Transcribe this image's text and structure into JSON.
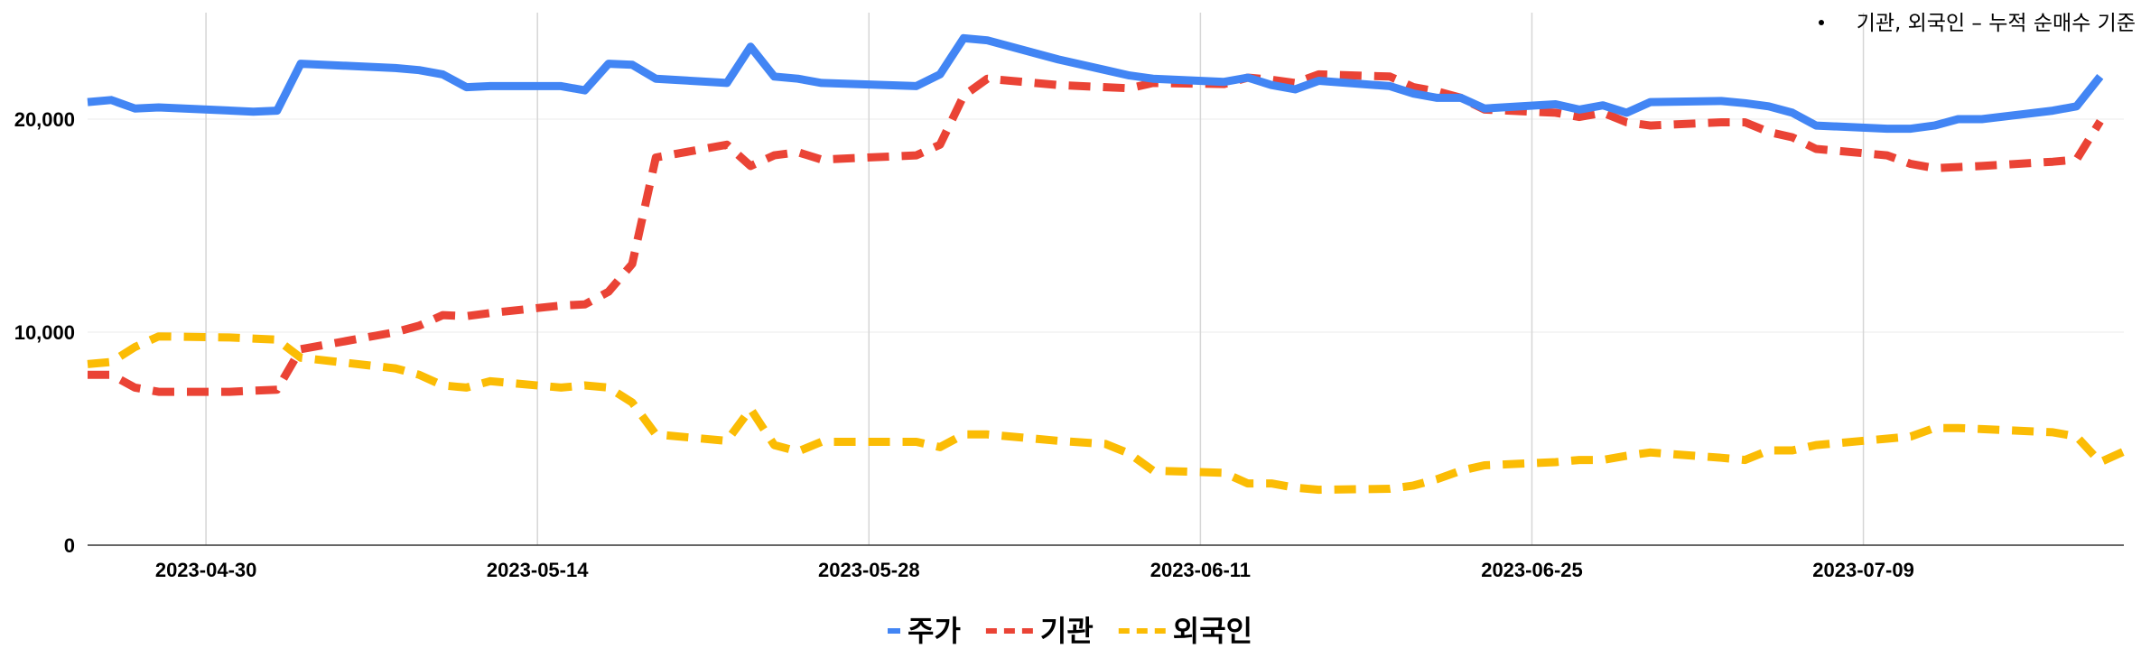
{
  "note": {
    "text": "기관, 외국인 – 누적 순매수 기준"
  },
  "chart_data": {
    "type": "line",
    "x_tick_labels": [
      "2023-04-30",
      "2023-05-14",
      "2023-05-28",
      "2023-06-11",
      "2023-06-25",
      "2023-07-09"
    ],
    "y_tick_labels": [
      "0",
      "10,000",
      "20,000"
    ],
    "y_ticks": [
      0,
      10000,
      20000
    ],
    "ylim": [
      0,
      25000
    ],
    "xlim": [
      "2023-04-25",
      "2023-07-20"
    ],
    "grid": "vertical and horizontal",
    "legend_position": "bottom",
    "series": [
      {
        "name": "주가",
        "color": "#4285f4",
        "dash": "solid",
        "points": [
          [
            "2023-04-25",
            20800
          ],
          [
            "2023-04-26",
            20900
          ],
          [
            "2023-04-27",
            20500
          ],
          [
            "2023-04-28",
            20550
          ],
          [
            "2023-05-02",
            20350
          ],
          [
            "2023-05-03",
            20400
          ],
          [
            "2023-05-04",
            22600
          ],
          [
            "2023-05-08",
            22400
          ],
          [
            "2023-05-09",
            22300
          ],
          [
            "2023-05-10",
            22100
          ],
          [
            "2023-05-11",
            21500
          ],
          [
            "2023-05-12",
            21550
          ],
          [
            "2023-05-15",
            21550
          ],
          [
            "2023-05-16",
            21350
          ],
          [
            "2023-05-17",
            22600
          ],
          [
            "2023-05-18",
            22550
          ],
          [
            "2023-05-19",
            21900
          ],
          [
            "2023-05-22",
            21700
          ],
          [
            "2023-05-23",
            23400
          ],
          [
            "2023-05-24",
            22000
          ],
          [
            "2023-05-25",
            21900
          ],
          [
            "2023-05-26",
            21700
          ],
          [
            "2023-05-30",
            21550
          ],
          [
            "2023-05-31",
            22100
          ],
          [
            "2023-06-01",
            23800
          ],
          [
            "2023-06-02",
            23700
          ],
          [
            "2023-06-05",
            22800
          ],
          [
            "2023-06-07",
            22300
          ],
          [
            "2023-06-08",
            22050
          ],
          [
            "2023-06-09",
            21900
          ],
          [
            "2023-06-12",
            21750
          ],
          [
            "2023-06-13",
            21950
          ],
          [
            "2023-06-14",
            21600
          ],
          [
            "2023-06-15",
            21400
          ],
          [
            "2023-06-16",
            21800
          ],
          [
            "2023-06-19",
            21550
          ],
          [
            "2023-06-20",
            21200
          ],
          [
            "2023-06-21",
            21000
          ],
          [
            "2023-06-22",
            21000
          ],
          [
            "2023-06-23",
            20500
          ],
          [
            "2023-06-26",
            20700
          ],
          [
            "2023-06-27",
            20450
          ],
          [
            "2023-06-28",
            20650
          ],
          [
            "2023-06-29",
            20300
          ],
          [
            "2023-06-30",
            20800
          ],
          [
            "2023-07-03",
            20850
          ],
          [
            "2023-07-04",
            20750
          ],
          [
            "2023-07-05",
            20600
          ],
          [
            "2023-07-06",
            20300
          ],
          [
            "2023-07-07",
            19700
          ],
          [
            "2023-07-10",
            19550
          ],
          [
            "2023-07-11",
            19550
          ],
          [
            "2023-07-12",
            19700
          ],
          [
            "2023-07-13",
            20000
          ],
          [
            "2023-07-14",
            20000
          ],
          [
            "2023-07-17",
            20400
          ],
          [
            "2023-07-18",
            20600
          ],
          [
            "2023-07-19",
            22000
          ]
        ]
      },
      {
        "name": "기관",
        "color": "#ea4335",
        "dash": "dashed",
        "points": [
          [
            "2023-04-25",
            8000
          ],
          [
            "2023-04-26",
            8000
          ],
          [
            "2023-04-27",
            7400
          ],
          [
            "2023-04-28",
            7200
          ],
          [
            "2023-05-01",
            7200
          ],
          [
            "2023-05-02",
            7250
          ],
          [
            "2023-05-03",
            7300
          ],
          [
            "2023-05-04",
            9200
          ],
          [
            "2023-05-08",
            10000
          ],
          [
            "2023-05-09",
            10300
          ],
          [
            "2023-05-10",
            10800
          ],
          [
            "2023-05-11",
            10750
          ],
          [
            "2023-05-12",
            10900
          ],
          [
            "2023-05-15",
            11250
          ],
          [
            "2023-05-16",
            11300
          ],
          [
            "2023-05-17",
            11900
          ],
          [
            "2023-05-18",
            13200
          ],
          [
            "2023-05-19",
            18200
          ],
          [
            "2023-05-22",
            18800
          ],
          [
            "2023-05-23",
            17800
          ],
          [
            "2023-05-24",
            18300
          ],
          [
            "2023-05-25",
            18450
          ],
          [
            "2023-05-26",
            18100
          ],
          [
            "2023-05-30",
            18300
          ],
          [
            "2023-05-31",
            18800
          ],
          [
            "2023-06-01",
            21100
          ],
          [
            "2023-06-02",
            21900
          ],
          [
            "2023-06-05",
            21600
          ],
          [
            "2023-06-07",
            21500
          ],
          [
            "2023-06-08",
            21450
          ],
          [
            "2023-06-09",
            21700
          ],
          [
            "2023-06-12",
            21650
          ],
          [
            "2023-06-13",
            21950
          ],
          [
            "2023-06-14",
            21850
          ],
          [
            "2023-06-15",
            21700
          ],
          [
            "2023-06-16",
            22100
          ],
          [
            "2023-06-19",
            22000
          ],
          [
            "2023-06-20",
            21500
          ],
          [
            "2023-06-21",
            21300
          ],
          [
            "2023-06-22",
            21000
          ],
          [
            "2023-06-23",
            20450
          ],
          [
            "2023-06-26",
            20300
          ],
          [
            "2023-06-27",
            20100
          ],
          [
            "2023-06-28",
            20300
          ],
          [
            "2023-06-29",
            19850
          ],
          [
            "2023-06-30",
            19700
          ],
          [
            "2023-07-03",
            19850
          ],
          [
            "2023-07-04",
            19850
          ],
          [
            "2023-07-05",
            19400
          ],
          [
            "2023-07-06",
            19150
          ],
          [
            "2023-07-07",
            18600
          ],
          [
            "2023-07-10",
            18300
          ],
          [
            "2023-07-11",
            17900
          ],
          [
            "2023-07-12",
            17700
          ],
          [
            "2023-07-13",
            17750
          ],
          [
            "2023-07-14",
            17800
          ],
          [
            "2023-07-17",
            18000
          ],
          [
            "2023-07-18",
            18100
          ],
          [
            "2023-07-19",
            19900
          ]
        ]
      },
      {
        "name": "외국인",
        "color": "#fbbc04",
        "dash": "dashed",
        "points": [
          [
            "2023-04-25",
            8500
          ],
          [
            "2023-04-26",
            8600
          ],
          [
            "2023-04-27",
            9300
          ],
          [
            "2023-04-28",
            9800
          ],
          [
            "2023-05-01",
            9750
          ],
          [
            "2023-05-02",
            9700
          ],
          [
            "2023-05-03",
            9650
          ],
          [
            "2023-05-04",
            8800
          ],
          [
            "2023-05-08",
            8300
          ],
          [
            "2023-05-09",
            8000
          ],
          [
            "2023-05-10",
            7500
          ],
          [
            "2023-05-11",
            7400
          ],
          [
            "2023-05-12",
            7700
          ],
          [
            "2023-05-15",
            7400
          ],
          [
            "2023-05-16",
            7500
          ],
          [
            "2023-05-17",
            7400
          ],
          [
            "2023-05-18",
            6700
          ],
          [
            "2023-05-19",
            5200
          ],
          [
            "2023-05-22",
            4900
          ],
          [
            "2023-05-23",
            6400
          ],
          [
            "2023-05-24",
            4700
          ],
          [
            "2023-05-25",
            4400
          ],
          [
            "2023-05-26",
            4850
          ],
          [
            "2023-05-30",
            4850
          ],
          [
            "2023-05-31",
            4600
          ],
          [
            "2023-06-01",
            5200
          ],
          [
            "2023-06-02",
            5200
          ],
          [
            "2023-06-05",
            4900
          ],
          [
            "2023-06-07",
            4750
          ],
          [
            "2023-06-08",
            4300
          ],
          [
            "2023-06-09",
            3500
          ],
          [
            "2023-06-12",
            3400
          ],
          [
            "2023-06-13",
            2900
          ],
          [
            "2023-06-14",
            2900
          ],
          [
            "2023-06-15",
            2700
          ],
          [
            "2023-06-16",
            2600
          ],
          [
            "2023-06-19",
            2650
          ],
          [
            "2023-06-20",
            2800
          ],
          [
            "2023-06-21",
            3100
          ],
          [
            "2023-06-22",
            3500
          ],
          [
            "2023-06-23",
            3750
          ],
          [
            "2023-06-26",
            3900
          ],
          [
            "2023-06-27",
            4000
          ],
          [
            "2023-06-28",
            4000
          ],
          [
            "2023-06-29",
            4200
          ],
          [
            "2023-06-30",
            4350
          ],
          [
            "2023-07-03",
            4100
          ],
          [
            "2023-07-04",
            4000
          ],
          [
            "2023-07-05",
            4450
          ],
          [
            "2023-07-06",
            4450
          ],
          [
            "2023-07-07",
            4700
          ],
          [
            "2023-07-10",
            5000
          ],
          [
            "2023-07-11",
            5100
          ],
          [
            "2023-07-12",
            5500
          ],
          [
            "2023-07-13",
            5500
          ],
          [
            "2023-07-14",
            5450
          ],
          [
            "2023-07-17",
            5300
          ],
          [
            "2023-07-18",
            5100
          ],
          [
            "2023-07-19",
            3900
          ],
          [
            "2023-07-20",
            4400
          ]
        ]
      }
    ]
  }
}
